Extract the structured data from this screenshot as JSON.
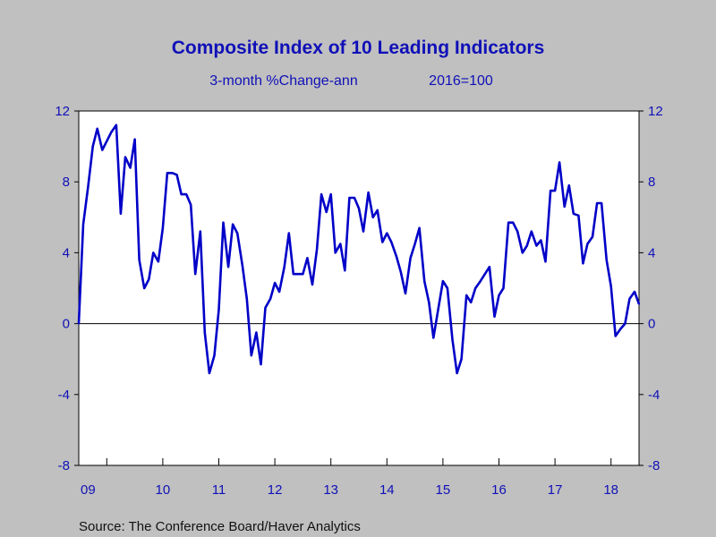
{
  "colors": {
    "background": "#c0c0c0",
    "plot_background": "#ffffff",
    "series": "#0000c8",
    "text": "#1010b8",
    "source_text": "#111111"
  },
  "source": "Source:  The Conference Board/Haver Analytics",
  "chart_data": {
    "type": "line",
    "title": "Composite Index of 10 Leading Indicators",
    "subtitle_left": "3-month %Change-ann",
    "subtitle_right": "2016=100",
    "xlabel": "",
    "ylabel": "",
    "ylim": [
      -8,
      12
    ],
    "yticks": [
      12,
      8,
      4,
      0,
      -4,
      -8
    ],
    "ytick_labels": [
      "12",
      "8",
      "4",
      "0",
      "-4",
      "-8"
    ],
    "xlim": [
      2009.0,
      2019.0
    ],
    "xticks": [
      2009,
      2010,
      2011,
      2012,
      2013,
      2014,
      2015,
      2016,
      2017,
      2018
    ],
    "xtick_labels": [
      "09",
      "10",
      "11",
      "12",
      "13",
      "14",
      "15",
      "16",
      "17",
      "18"
    ],
    "grid": false,
    "zero_line": true,
    "legend": "none",
    "dual_y_axis": true,
    "series": [
      {
        "values": [
          [
            2009.0,
            0.0
          ],
          [
            2009.08,
            5.6
          ],
          [
            2009.17,
            7.8
          ],
          [
            2009.25,
            10.0
          ],
          [
            2009.33,
            11.0
          ],
          [
            2009.42,
            9.8
          ],
          [
            2009.5,
            10.3
          ],
          [
            2009.58,
            10.8
          ],
          [
            2009.67,
            11.2
          ],
          [
            2009.75,
            6.2
          ],
          [
            2009.83,
            9.4
          ],
          [
            2009.92,
            8.8
          ],
          [
            2010.0,
            10.4
          ],
          [
            2010.08,
            3.6
          ],
          [
            2010.17,
            2.0
          ],
          [
            2010.25,
            2.5
          ],
          [
            2010.33,
            4.0
          ],
          [
            2010.42,
            3.5
          ],
          [
            2010.5,
            5.4
          ],
          [
            2010.58,
            8.5
          ],
          [
            2010.67,
            8.5
          ],
          [
            2010.75,
            8.4
          ],
          [
            2010.83,
            7.3
          ],
          [
            2010.92,
            7.3
          ],
          [
            2011.0,
            6.7
          ],
          [
            2011.08,
            2.8
          ],
          [
            2011.17,
            5.2
          ],
          [
            2011.25,
            -0.5
          ],
          [
            2011.33,
            -2.8
          ],
          [
            2011.42,
            -1.8
          ],
          [
            2011.5,
            0.8
          ],
          [
            2011.58,
            5.7
          ],
          [
            2011.67,
            3.2
          ],
          [
            2011.75,
            5.6
          ],
          [
            2011.83,
            5.1
          ],
          [
            2011.92,
            3.3
          ],
          [
            2012.0,
            1.4
          ],
          [
            2012.08,
            -1.8
          ],
          [
            2012.17,
            -0.5
          ],
          [
            2012.25,
            -2.3
          ],
          [
            2012.33,
            0.9
          ],
          [
            2012.42,
            1.4
          ],
          [
            2012.5,
            2.3
          ],
          [
            2012.58,
            1.8
          ],
          [
            2012.67,
            3.2
          ],
          [
            2012.75,
            5.1
          ],
          [
            2012.83,
            2.8
          ],
          [
            2012.92,
            2.8
          ],
          [
            2013.0,
            2.8
          ],
          [
            2013.08,
            3.7
          ],
          [
            2013.17,
            2.2
          ],
          [
            2013.25,
            4.2
          ],
          [
            2013.33,
            7.3
          ],
          [
            2013.42,
            6.3
          ],
          [
            2013.5,
            7.3
          ],
          [
            2013.58,
            4.0
          ],
          [
            2013.67,
            4.5
          ],
          [
            2013.75,
            3.0
          ],
          [
            2013.83,
            7.1
          ],
          [
            2013.92,
            7.1
          ],
          [
            2014.0,
            6.5
          ],
          [
            2014.08,
            5.2
          ],
          [
            2014.17,
            7.4
          ],
          [
            2014.25,
            6.0
          ],
          [
            2014.33,
            6.4
          ],
          [
            2014.42,
            4.6
          ],
          [
            2014.5,
            5.1
          ],
          [
            2014.58,
            4.6
          ],
          [
            2014.67,
            3.8
          ],
          [
            2014.75,
            2.9
          ],
          [
            2014.83,
            1.7
          ],
          [
            2014.92,
            3.7
          ],
          [
            2015.0,
            4.5
          ],
          [
            2015.08,
            5.4
          ],
          [
            2015.17,
            2.4
          ],
          [
            2015.25,
            1.2
          ],
          [
            2015.33,
            -0.8
          ],
          [
            2015.42,
            0.9
          ],
          [
            2015.5,
            2.4
          ],
          [
            2015.58,
            2.0
          ],
          [
            2015.67,
            -0.9
          ],
          [
            2015.75,
            -2.8
          ],
          [
            2015.83,
            -2.0
          ],
          [
            2015.92,
            1.6
          ],
          [
            2016.0,
            1.2
          ],
          [
            2016.08,
            2.0
          ],
          [
            2016.17,
            2.4
          ],
          [
            2016.25,
            2.8
          ],
          [
            2016.33,
            3.2
          ],
          [
            2016.42,
            0.4
          ],
          [
            2016.5,
            1.6
          ],
          [
            2016.58,
            2.0
          ],
          [
            2016.67,
            5.7
          ],
          [
            2016.75,
            5.7
          ],
          [
            2016.83,
            5.2
          ],
          [
            2016.92,
            4.0
          ],
          [
            2017.0,
            4.4
          ],
          [
            2017.08,
            5.2
          ],
          [
            2017.17,
            4.4
          ],
          [
            2017.25,
            4.7
          ],
          [
            2017.33,
            3.5
          ],
          [
            2017.42,
            7.5
          ],
          [
            2017.5,
            7.5
          ],
          [
            2017.58,
            9.1
          ],
          [
            2017.67,
            6.6
          ],
          [
            2017.75,
            7.8
          ],
          [
            2017.83,
            6.2
          ],
          [
            2017.92,
            6.1
          ],
          [
            2018.0,
            3.4
          ],
          [
            2018.08,
            4.5
          ],
          [
            2018.17,
            4.9
          ],
          [
            2018.25,
            6.8
          ],
          [
            2018.33,
            6.8
          ],
          [
            2018.42,
            3.6
          ],
          [
            2018.5,
            2.1
          ],
          [
            2018.58,
            -0.7
          ],
          [
            2018.67,
            -0.3
          ],
          [
            2018.75,
            0.0
          ],
          [
            2018.83,
            1.4
          ],
          [
            2018.92,
            1.8
          ],
          [
            2019.0,
            1.1
          ]
        ]
      }
    ]
  }
}
